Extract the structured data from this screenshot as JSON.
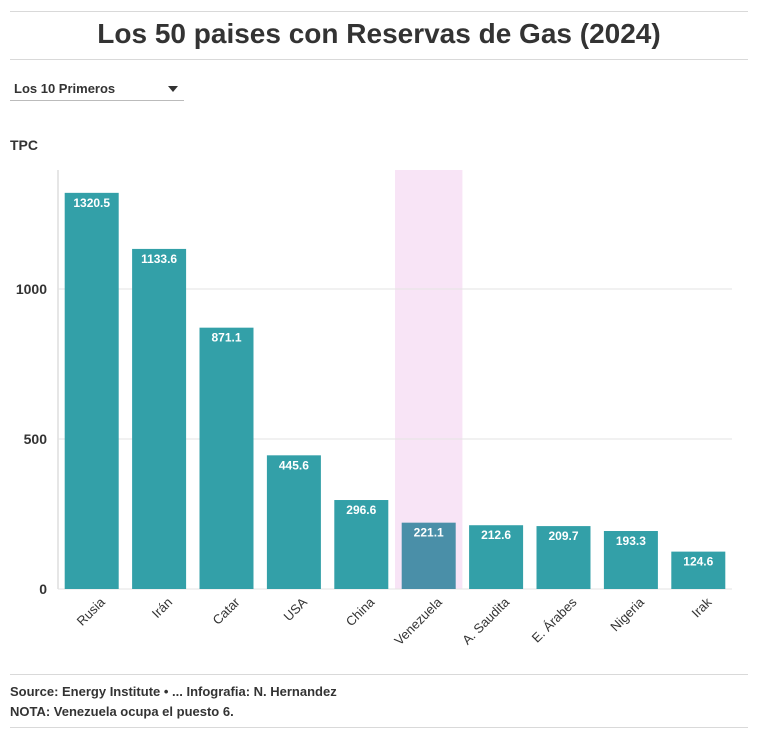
{
  "header": {
    "title": "Los 50 paises con Reservas de Gas (2024)"
  },
  "dropdown": {
    "selected": "Los 10 Primeros"
  },
  "chart_data": {
    "type": "bar",
    "ylabel": "TPC",
    "ylim": [
      0,
      1400
    ],
    "yticks": [
      0,
      500,
      1000
    ],
    "grid": true,
    "categories": [
      "Rusia",
      "Irán",
      "Catar",
      "USA",
      "China",
      "Venezuela",
      "A. Saudita",
      "E. Árabes",
      "Nigeria",
      "Irak"
    ],
    "values": [
      1320.5,
      1133.6,
      871.1,
      445.6,
      296.6,
      221.1,
      212.6,
      209.7,
      193.3,
      124.6
    ],
    "value_labels": [
      "1320.5",
      "1133.6",
      "871.1",
      "445.6",
      "296.6",
      "221.1",
      "212.6",
      "209.7",
      "193.3",
      "124.6"
    ],
    "highlight": "Venezuela",
    "colors": {
      "bar": "#33a0a8",
      "highlight_bar": "#4a8fa8",
      "highlight_band": "#f8e4f6"
    }
  },
  "footer": {
    "source": "Source: Energy Institute • ... Infografia: N. Hernandez",
    "note": "NOTA: Venezuela ocupa el puesto 6."
  }
}
